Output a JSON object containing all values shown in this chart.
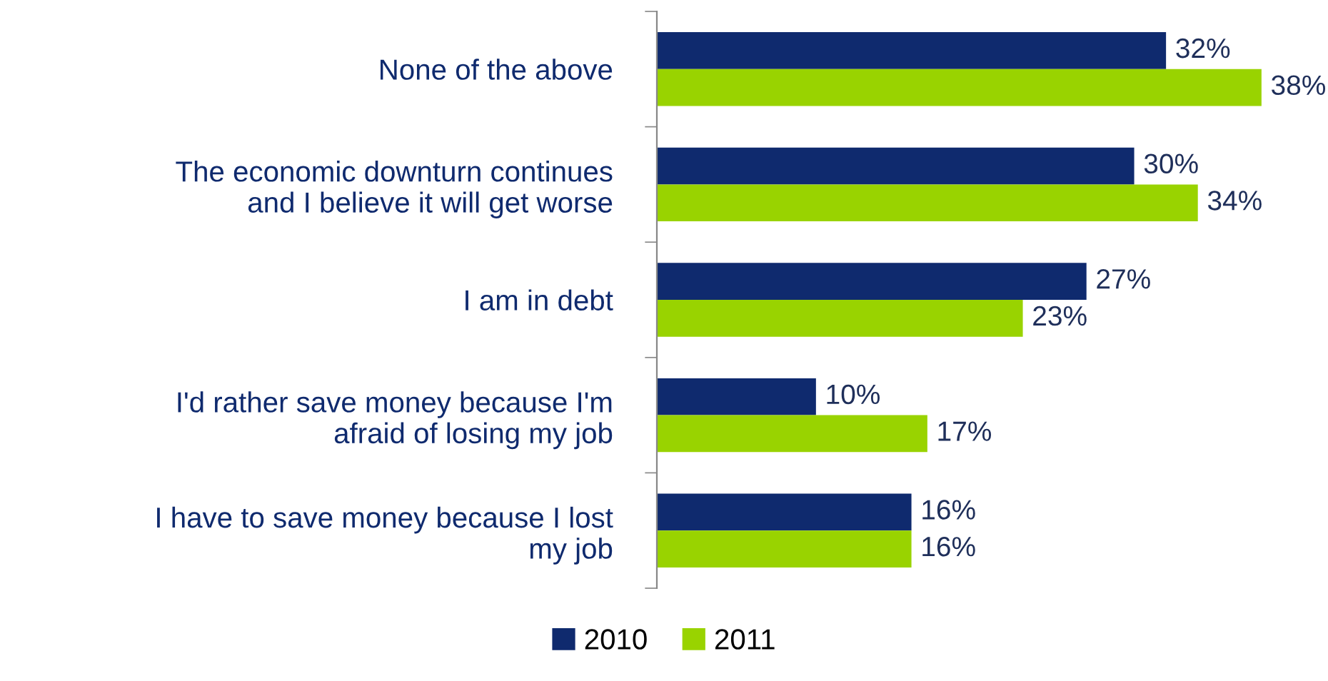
{
  "chart_data": {
    "type": "bar",
    "orientation": "horizontal",
    "categories": [
      "None of the above",
      "The economic downturn continues\nand I believe it will get worse",
      "I am in debt",
      "I'd rather save money because I'm\nafraid of losing my job",
      "I have to save money because I lost\nmy job"
    ],
    "series": [
      {
        "name": "2010",
        "color": "#0f2a6e",
        "values": [
          32,
          30,
          27,
          10,
          16
        ],
        "value_labels": [
          "32%",
          "30%",
          "27%",
          "10%",
          "16%"
        ]
      },
      {
        "name": "2011",
        "color": "#99d300",
        "values": [
          38,
          34,
          23,
          17,
          16
        ],
        "value_labels": [
          "38%",
          "34%",
          "23%",
          "17%",
          "16%"
        ]
      }
    ],
    "legend": "bottom",
    "grid": false
  }
}
